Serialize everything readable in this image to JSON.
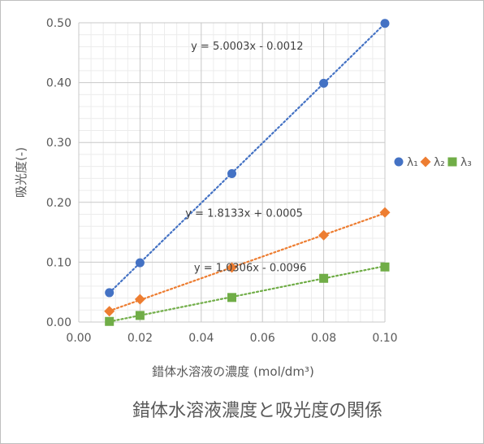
{
  "chart_data": {
    "type": "scatter",
    "title": "錯体水溶液濃度と吸光度の関係",
    "xlabel": "錯体水溶液の濃度 (mol/dm³)",
    "ylabel": "吸光度(-)",
    "xlim": [
      0,
      0.1
    ],
    "ylim": [
      0,
      0.5
    ],
    "xticks": [
      "0.00",
      "0.02",
      "0.04",
      "0.06",
      "0.08",
      "0.10"
    ],
    "yticks": [
      "0.00",
      "0.10",
      "0.20",
      "0.30",
      "0.40",
      "0.50"
    ],
    "grid": true,
    "legend_position": "right",
    "series": [
      {
        "name": "λ₁",
        "marker": "circle",
        "color": "#4472C4",
        "x": [
          0.01,
          0.02,
          0.05,
          0.08,
          0.1
        ],
        "y": [
          0.049,
          0.099,
          0.248,
          0.399,
          0.499
        ],
        "trendline": {
          "slope": 5.0003,
          "intercept": -0.0012,
          "equation": "y = 5.0003x - 0.0012"
        }
      },
      {
        "name": "λ₂",
        "marker": "diamond",
        "color": "#ED7D31",
        "x": [
          0.01,
          0.02,
          0.05,
          0.08,
          0.1
        ],
        "y": [
          0.018,
          0.038,
          0.091,
          0.145,
          0.183
        ],
        "trendline": {
          "slope": 1.8133,
          "intercept": 0.0005,
          "equation": "y = 1.8133x + 0.0005"
        }
      },
      {
        "name": "λ₃",
        "marker": "square",
        "color": "#70AD47",
        "x": [
          0.01,
          0.02,
          0.05,
          0.08,
          0.1
        ],
        "y": [
          0.001,
          0.011,
          0.041,
          0.073,
          0.092
        ],
        "trendline": {
          "slope": 1.0306,
          "intercept": -0.0096,
          "equation": "y = 1.0306x - 0.0096"
        }
      }
    ]
  }
}
